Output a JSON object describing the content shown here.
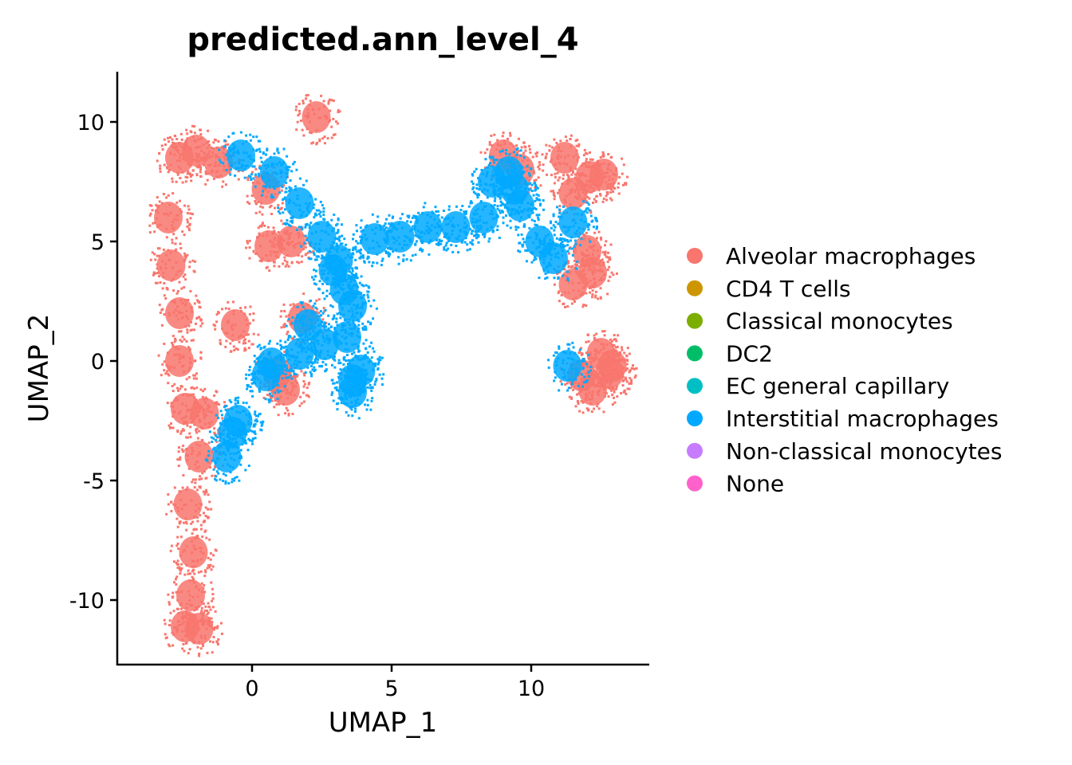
{
  "chart_data": {
    "type": "scatter",
    "title": "predicted.ann_level_4",
    "xlabel": "UMAP_1",
    "ylabel": "UMAP_2",
    "xlim": [
      -4.9,
      14.1
    ],
    "ylim": [
      -12.75,
      12.1
    ],
    "xticks": [
      0,
      5,
      10
    ],
    "xtick_labels": [
      "0",
      "5",
      "10"
    ],
    "yticks": [
      10,
      5,
      0,
      -5,
      -10
    ],
    "ytick_labels": [
      "10",
      "5",
      "0",
      "-5",
      "-10"
    ],
    "grid": false,
    "legend_position": "right",
    "legend": [
      {
        "label": "Alveolar macrophages",
        "color": "#F8766D"
      },
      {
        "label": "CD4 T cells",
        "color": "#CD9600"
      },
      {
        "label": "Classical monocytes",
        "color": "#7CAE00"
      },
      {
        "label": "DC2",
        "color": "#00BE67"
      },
      {
        "label": "EC general capillary",
        "color": "#00BFC4"
      },
      {
        "label": "Interstitial macrophages",
        "color": "#00A9FF"
      },
      {
        "label": "Non-classical monocytes",
        "color": "#C77CFF"
      },
      {
        "label": "None",
        "color": "#FF61CC"
      }
    ],
    "clusters": [
      {
        "series": "Alveolar macrophages",
        "points": [
          [
            -2.6,
            8.5
          ],
          [
            -2.0,
            8.8
          ],
          [
            -1.2,
            8.3
          ],
          [
            0.5,
            7.2
          ],
          [
            0.6,
            4.8
          ],
          [
            1.4,
            5.0
          ],
          [
            -3.0,
            6.0
          ],
          [
            -2.9,
            4.0
          ],
          [
            -2.6,
            2.0
          ],
          [
            -2.6,
            0.0
          ],
          [
            -2.4,
            -2.0
          ],
          [
            -1.7,
            -2.2
          ],
          [
            -1.9,
            -4.0
          ],
          [
            -2.3,
            -6.0
          ],
          [
            -2.1,
            -8.0
          ],
          [
            -2.2,
            -9.8
          ],
          [
            -2.4,
            -11.1
          ],
          [
            -1.9,
            -11.2
          ],
          [
            1.2,
            -1.2
          ],
          [
            2.3,
            10.2
          ],
          [
            0.9,
            -0.5
          ],
          [
            1.8,
            1.8
          ],
          [
            -0.6,
            1.5
          ]
        ]
      },
      {
        "series": "Alveolar macrophages",
        "points": [
          [
            9.0,
            8.6
          ],
          [
            9.6,
            8.0
          ],
          [
            11.5,
            7.0
          ],
          [
            12.1,
            7.7
          ],
          [
            12.6,
            7.8
          ],
          [
            11.5,
            3.2
          ],
          [
            12.2,
            3.7
          ],
          [
            12.0,
            4.6
          ],
          [
            11.8,
            -0.6
          ],
          [
            12.5,
            0.3
          ],
          [
            12.8,
            -0.5
          ],
          [
            12.2,
            -1.2
          ],
          [
            11.2,
            8.5
          ],
          [
            12.9,
            -0.2
          ]
        ]
      },
      {
        "series": "Interstitial macrophages",
        "points": [
          [
            -0.4,
            8.6
          ],
          [
            0.8,
            7.9
          ],
          [
            1.7,
            6.6
          ],
          [
            2.5,
            5.2
          ],
          [
            3.1,
            4.2
          ],
          [
            3.3,
            3.0
          ],
          [
            3.6,
            2.3
          ],
          [
            3.4,
            1.0
          ],
          [
            2.6,
            0.7
          ],
          [
            1.7,
            0.3
          ],
          [
            0.7,
            -0.1
          ],
          [
            3.6,
            -0.8
          ],
          [
            3.6,
            -1.3
          ],
          [
            3.9,
            -0.4
          ],
          [
            2.0,
            1.5
          ],
          [
            0.5,
            -0.6
          ],
          [
            -0.5,
            -2.5
          ],
          [
            -0.9,
            -4.0
          ],
          [
            -0.7,
            -3.0
          ],
          [
            2.9,
            3.8
          ]
        ]
      },
      {
        "series": "Interstitial macrophages",
        "points": [
          [
            4.4,
            5.1
          ],
          [
            5.3,
            5.2
          ],
          [
            6.3,
            5.6
          ],
          [
            7.3,
            5.6
          ],
          [
            8.3,
            6.0
          ],
          [
            8.6,
            7.5
          ],
          [
            9.2,
            7.9
          ],
          [
            9.6,
            6.5
          ],
          [
            10.3,
            5.0
          ],
          [
            10.8,
            4.3
          ],
          [
            11.5,
            5.8
          ],
          [
            11.3,
            -0.2
          ],
          [
            9.4,
            7.2
          ]
        ]
      }
    ]
  }
}
